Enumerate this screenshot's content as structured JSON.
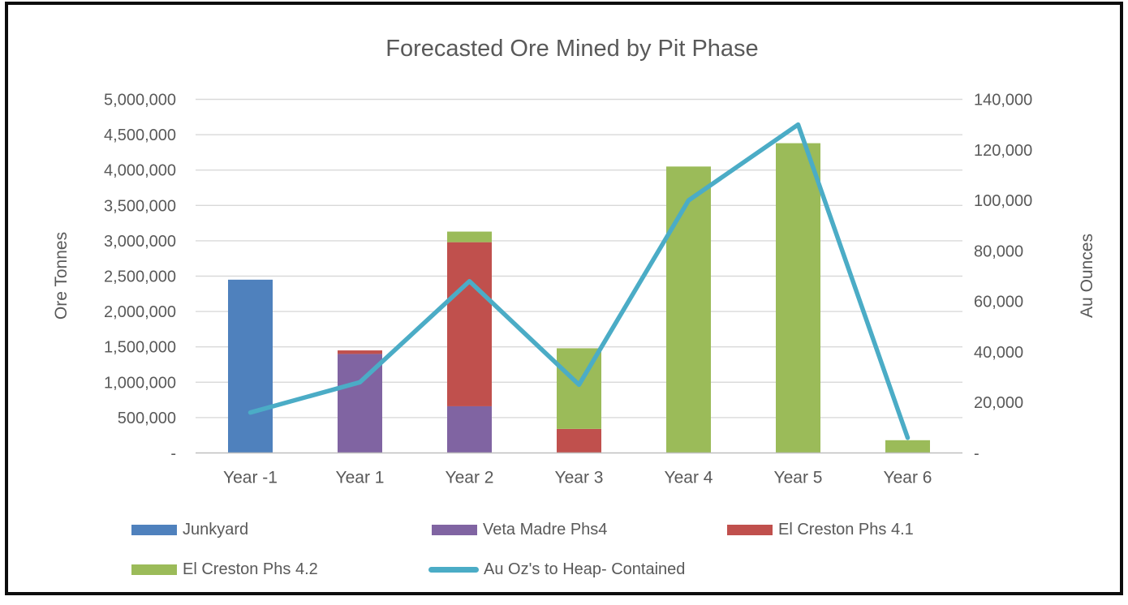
{
  "window": {
    "background": "#ffffff",
    "frame_border_color": "#0d0d0d"
  },
  "chart_data": {
    "type": "combo: stacked bar + line (secondary axis)",
    "title": "Forecasted Ore Mined by Pit Phase",
    "categories": [
      "Year -1",
      "Year 1",
      "Year 2",
      "Year 3",
      "Year 4",
      "Year 5",
      "Year 6"
    ],
    "bar_series": [
      {
        "name": "Junkyard",
        "color": "#4F81BD",
        "values": [
          2450000,
          0,
          0,
          0,
          0,
          0,
          0
        ]
      },
      {
        "name": "Veta Madre Phs4",
        "color": "#8064A2",
        "values": [
          0,
          1400000,
          660000,
          0,
          0,
          0,
          0
        ]
      },
      {
        "name": "El Creston Phs 4.1",
        "color": "#C0504D",
        "values": [
          0,
          50000,
          2320000,
          340000,
          0,
          0,
          0
        ]
      },
      {
        "name": "El Creston Phs 4.2",
        "color": "#9BBB59",
        "values": [
          0,
          0,
          150000,
          1140000,
          4050000,
          4380000,
          180000
        ]
      }
    ],
    "line_series": {
      "name": "Au Oz's to Heap- Contained",
      "color": "#4BACC6",
      "axis": "right",
      "values": [
        16000,
        28000,
        68000,
        27000,
        100000,
        130000,
        6000
      ]
    },
    "left_axis": {
      "title": "Ore Tonnes",
      "min": 0,
      "max": 5000000,
      "step": 500000,
      "tick_labels": [
        "-",
        "500,000",
        "1,000,000",
        "1,500,000",
        "2,000,000",
        "2,500,000",
        "3,000,000",
        "3,500,000",
        "4,000,000",
        "4,500,000",
        "5,000,000"
      ]
    },
    "right_axis": {
      "title": "Au Ounces",
      "min": 0,
      "max": 140000,
      "step": 20000,
      "tick_labels": [
        "-",
        "20,000",
        "40,000",
        "60,000",
        "80,000",
        "100,000",
        "120,000",
        "140,000"
      ]
    },
    "grid": true,
    "legend_position": "bottom",
    "colors": {
      "text": "#595959",
      "gridline": "#D9D9D9",
      "axis_line": "#BFBFBF"
    }
  }
}
